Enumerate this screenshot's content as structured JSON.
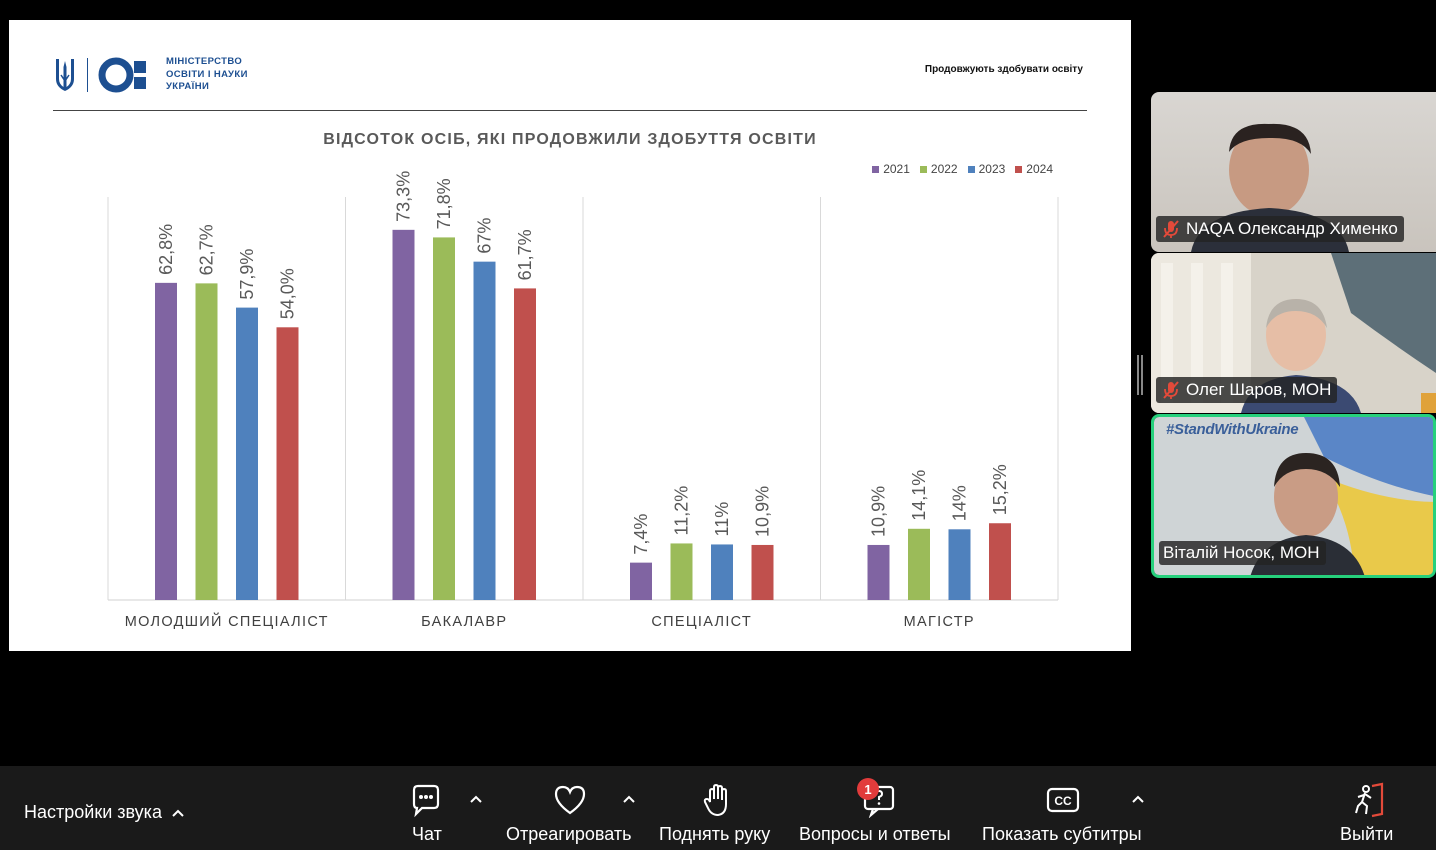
{
  "slide": {
    "ministry_lines": [
      "МІНІСТЕРСТВО",
      "ОСВІТИ І НАУКИ",
      "УКРАЇНИ"
    ],
    "header_text": "Продовжують здобувати освіту",
    "chart_title": "ВІДСОТОК ОСІБ, ЯКІ ПРОДОВЖИЛИ ЗДОБУТТЯ ОСВІТИ",
    "brand_color": "#1d4f91"
  },
  "chart_data": {
    "type": "bar",
    "title": "ВІДСОТОК ОСІБ, ЯКІ ПРОДОВЖИЛИ ЗДОБУТТЯ ОСВІТИ",
    "categories": [
      "МОЛОДШИЙ СПЕЦІАЛІСТ",
      "БАКАЛАВР",
      "СПЕЦІАЛІСТ",
      "МАГІСТР"
    ],
    "series": [
      {
        "name": "2021",
        "color": "#8064a2",
        "values": [
          62.8,
          73.3,
          7.4,
          10.9
        ],
        "labels": [
          "62,8%",
          "73,3%",
          "7,4%",
          "10,9%"
        ]
      },
      {
        "name": "2022",
        "color": "#9bbb59",
        "values": [
          62.7,
          71.8,
          11.2,
          14.1
        ],
        "labels": [
          "62,7%",
          "71,8%",
          "11,2%",
          "14,1%"
        ]
      },
      {
        "name": "2023",
        "color": "#4f81bd",
        "values": [
          57.9,
          67,
          11,
          14
        ],
        "labels": [
          "57,9%",
          "67%",
          "11%",
          "14%"
        ]
      },
      {
        "name": "2024",
        "color": "#c0504d",
        "values": [
          54.0,
          61.7,
          10.9,
          15.2
        ],
        "labels": [
          "54,0%",
          "61,7%",
          "10,9%",
          "15,2%"
        ]
      }
    ],
    "legend_position": "top-right",
    "grid": false,
    "ylim": [
      0,
      75
    ]
  },
  "participants": [
    {
      "name": "NAQA Олександр Хименко",
      "muted": true,
      "speaking": false
    },
    {
      "name": "Олег Шаров, МОН",
      "muted": true,
      "speaking": false
    },
    {
      "name": "Віталій Носок, МОН",
      "muted": false,
      "speaking": true,
      "overlay": "#StandWithUkraine"
    }
  ],
  "toolbar": {
    "audio_settings": "Настройки звука",
    "chat": "Чат",
    "react": "Отреагировать",
    "raise_hand": "Поднять руку",
    "qa": "Вопросы и ответы",
    "qa_badge": "1",
    "captions": "Показать субтитры",
    "leave": "Выйти"
  }
}
